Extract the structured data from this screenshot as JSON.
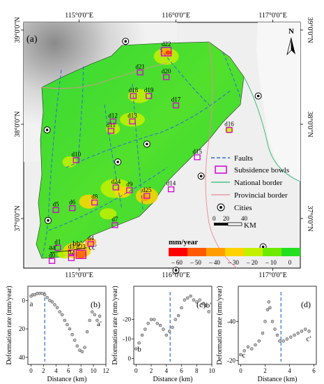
{
  "figure": {
    "panel_labels": {
      "a": "(a)",
      "b": "(b)",
      "c": "(c)",
      "d": "(d)"
    },
    "north_label": "N",
    "map": {
      "lon_ticks": [
        "115°0'0\"E",
        "116°0'0\"E",
        "117°0'0\"E"
      ],
      "lat_ticks": [
        "39°0'0\"N",
        "38°0'0\"N",
        "37°0'0\"N"
      ],
      "bowls": [
        {
          "id": "d0",
          "lon": 114.72,
          "lat": 36.55
        },
        {
          "id": "d1",
          "lon": 114.78,
          "lat": 36.69
        },
        {
          "id": "d2",
          "lon": 114.92,
          "lat": 36.58
        },
        {
          "id": "d3",
          "lon": 114.92,
          "lat": 36.64
        },
        {
          "id": "d4",
          "lon": 115.12,
          "lat": 36.73
        },
        {
          "id": "d5",
          "lon": 114.76,
          "lat": 37.09
        },
        {
          "id": "d6",
          "lon": 114.93,
          "lat": 37.11
        },
        {
          "id": "d7",
          "lon": 115.37,
          "lat": 36.93
        },
        {
          "id": "d8",
          "lon": 115.16,
          "lat": 37.17
        },
        {
          "id": "d9",
          "lon": 115.52,
          "lat": 37.3
        },
        {
          "id": "d10",
          "lon": 114.97,
          "lat": 37.62
        },
        {
          "id": "d11",
          "lon": 115.33,
          "lat": 37.93
        },
        {
          "id": "d12",
          "lon": 115.35,
          "lat": 38.03
        },
        {
          "id": "d13",
          "lon": 115.55,
          "lat": 38.03
        },
        {
          "id": "d14",
          "lon": 115.95,
          "lat": 37.31
        },
        {
          "id": "d15",
          "lon": 116.22,
          "lat": 37.65
        },
        {
          "id": "d16",
          "lon": 116.55,
          "lat": 37.94
        },
        {
          "id": "d17",
          "lon": 116.0,
          "lat": 38.2
        },
        {
          "id": "d18",
          "lon": 115.56,
          "lat": 38.3
        },
        {
          "id": "d19",
          "lon": 115.72,
          "lat": 38.3
        },
        {
          "id": "d20",
          "lon": 115.9,
          "lat": 38.5
        },
        {
          "id": "d21",
          "lon": 115.63,
          "lat": 38.55
        },
        {
          "id": "d22",
          "lon": 115.9,
          "lat": 38.77
        },
        {
          "id": "d23",
          "lon": 115.02,
          "lat": 36.62
        },
        {
          "id": "d24",
          "lon": 115.38,
          "lat": 37.33
        },
        {
          "id": "d25",
          "lon": 115.7,
          "lat": 37.24
        }
      ],
      "profile_labels": [
        {
          "text": "aa'",
          "lon": 114.73,
          "lat": 36.67
        },
        {
          "text": "bb'",
          "lon": 114.98,
          "lat": 36.71
        },
        {
          "text": "cc'",
          "lon": 115.14,
          "lat": 36.67
        }
      ],
      "legend": {
        "faults": "Faults",
        "subsidence_bowls": "Subsidence bowls",
        "national_border": "National border",
        "provincial_border": "Provincial border",
        "cities": "Cities"
      },
      "scalebar": {
        "ticks": [
          "0",
          "20",
          "40"
        ],
        "unit": "KM"
      },
      "colorbar": {
        "unit": "mm/year",
        "labels": [
          "– 60",
          "– 50",
          "– 40",
          "– 30",
          "– 20",
          "– 10",
          "0"
        ],
        "colors": [
          "#ff0000",
          "#ff5a00",
          "#ff9e00",
          "#ffd300",
          "#c4f000",
          "#6cea00",
          "#23e01e"
        ]
      }
    },
    "profiles": {
      "ylabel": "Deformation rate (mm/year)",
      "xlabel": "Distance (km)",
      "panels": [
        {
          "id": "b",
          "start_label": "a",
          "end_label": "a'",
          "x_ticks": [
            0,
            2,
            4,
            6,
            8,
            10,
            12
          ],
          "y_ticks": [
            0,
            20,
            40
          ],
          "fault_x": 2.2,
          "xlim": [
            -0.5,
            12
          ],
          "ylim": [
            -10,
            45
          ],
          "points": [
            [
              0,
              -3
            ],
            [
              0.3,
              -4
            ],
            [
              0.6,
              -4
            ],
            [
              1.0,
              -5
            ],
            [
              1.4,
              -5
            ],
            [
              1.8,
              -5
            ],
            [
              2.2,
              -4
            ],
            [
              2.6,
              -2
            ],
            [
              3.0,
              0
            ],
            [
              3.4,
              1
            ],
            [
              3.8,
              3
            ],
            [
              4.2,
              5
            ],
            [
              4.6,
              8
            ],
            [
              5.0,
              10
            ],
            [
              5.4,
              14
            ],
            [
              5.8,
              17
            ],
            [
              6.2,
              20
            ],
            [
              6.6,
              24
            ],
            [
              7.0,
              28
            ],
            [
              7.4,
              32
            ],
            [
              7.8,
              35
            ],
            [
              8.2,
              36
            ],
            [
              8.6,
              33
            ],
            [
              9.0,
              22
            ],
            [
              9.4,
              14
            ],
            [
              9.8,
              8
            ],
            [
              10.2,
              10
            ],
            [
              10.6,
              14
            ],
            [
              11.0,
              11
            ]
          ]
        },
        {
          "id": "c",
          "start_label": "b",
          "end_label": "b'",
          "x_ticks": [
            0,
            2,
            4,
            6,
            8,
            10
          ],
          "y_ticks": [
            -20,
            -10,
            0
          ],
          "fault_x": 4.5,
          "xlim": [
            -0.3,
            10
          ],
          "ylim": [
            -37,
            3
          ],
          "points": [
            [
              0,
              -5
            ],
            [
              0.4,
              -8
            ],
            [
              0.8,
              -12
            ],
            [
              1.2,
              -15
            ],
            [
              1.6,
              -18
            ],
            [
              2.0,
              -20
            ],
            [
              2.4,
              -20
            ],
            [
              2.8,
              -18
            ],
            [
              3.2,
              -17
            ],
            [
              3.6,
              -15
            ],
            [
              4.0,
              -12
            ],
            [
              4.4,
              -14
            ],
            [
              4.8,
              -16
            ],
            [
              5.2,
              -20
            ],
            [
              5.6,
              -22
            ],
            [
              6.0,
              -26
            ],
            [
              6.4,
              -30
            ],
            [
              6.8,
              -31
            ],
            [
              7.2,
              -32
            ],
            [
              7.6,
              -30
            ],
            [
              8.0,
              -29
            ],
            [
              8.4,
              -30
            ],
            [
              8.8,
              -28
            ],
            [
              9.2,
              -27
            ],
            [
              9.6,
              -24
            ]
          ]
        },
        {
          "id": "d",
          "start_label": "c",
          "end_label": "c'",
          "x_ticks": [
            0,
            2,
            4,
            6
          ],
          "y_ticks": [
            -20,
            -40
          ],
          "fault_x": 3.3,
          "xlim": [
            -0.2,
            6.2
          ],
          "ylim": [
            -58,
            -18
          ],
          "points": [
            [
              0,
              -23
            ],
            [
              0.3,
              -25
            ],
            [
              0.6,
              -27
            ],
            [
              0.9,
              -26
            ],
            [
              1.2,
              -28
            ],
            [
              1.5,
              -30
            ],
            [
              1.8,
              -34
            ],
            [
              2.0,
              -40
            ],
            [
              2.2,
              -46
            ],
            [
              2.3,
              -50
            ],
            [
              2.4,
              -47
            ],
            [
              2.6,
              -40
            ],
            [
              2.8,
              -36
            ],
            [
              3.0,
              -33
            ],
            [
              3.2,
              -30
            ],
            [
              3.5,
              -30
            ],
            [
              3.8,
              -31
            ],
            [
              4.1,
              -32
            ],
            [
              4.4,
              -33
            ],
            [
              4.7,
              -34
            ],
            [
              5.0,
              -35
            ],
            [
              5.3,
              -36
            ],
            [
              5.6,
              -35
            ]
          ]
        }
      ]
    }
  }
}
